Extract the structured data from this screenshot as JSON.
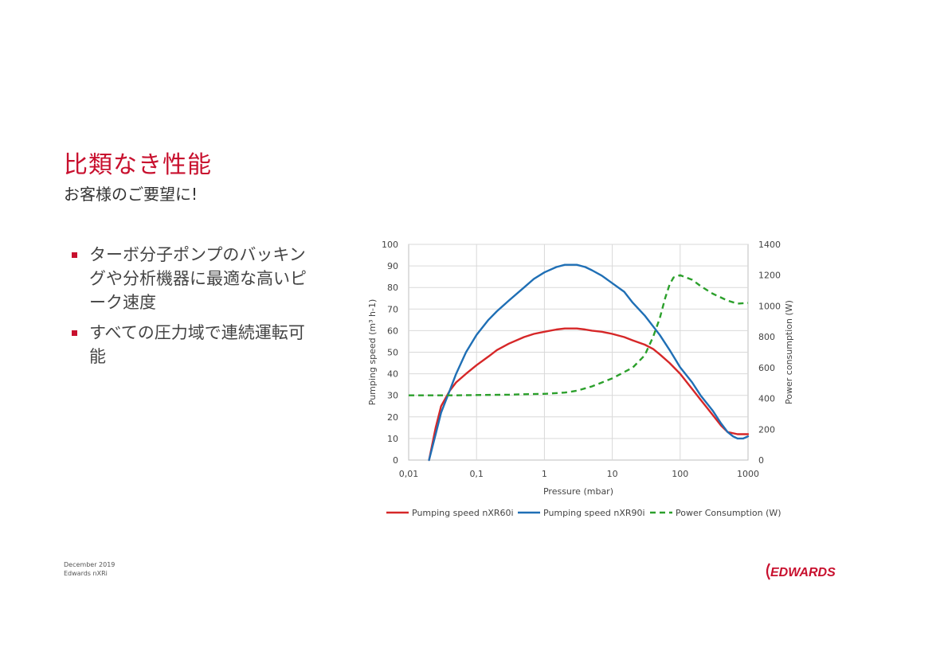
{
  "slide": {
    "title": "比類なき性能",
    "subtitle": "お客様のご要望に!",
    "bullets": [
      "ターボ分子ポンプのバッキングや分析機器に最適な高いピーク速度",
      "すべての圧力域で連続運転可能"
    ]
  },
  "footer": {
    "date": "December 2019",
    "product": "Edwards nXRi"
  },
  "logo": {
    "text": "EDWARDS",
    "color": "#c8102e"
  },
  "chart_data": {
    "type": "line",
    "title": "",
    "xlabel": "Pressure (mbar)",
    "ylabel": "Pumping speed (m³ h-1)",
    "y2label": "Power consumption (W)",
    "xscale": "log",
    "xlim": [
      0.01,
      1000
    ],
    "ylim": [
      0,
      100
    ],
    "y2lim": [
      0,
      1400
    ],
    "grid": true,
    "legend_position": "bottom",
    "xticks": [
      {
        "v": 0.01,
        "label": "0,01"
      },
      {
        "v": 0.1,
        "label": "0,1"
      },
      {
        "v": 1,
        "label": "1"
      },
      {
        "v": 10,
        "label": "10"
      },
      {
        "v": 100,
        "label": "100"
      },
      {
        "v": 1000,
        "label": "1000"
      }
    ],
    "yticks": [
      {
        "v": 0,
        "label": "0"
      },
      {
        "v": 10,
        "label": "10"
      },
      {
        "v": 20,
        "label": "20"
      },
      {
        "v": 30,
        "label": "30"
      },
      {
        "v": 40,
        "label": "40"
      },
      {
        "v": 50,
        "label": "50"
      },
      {
        "v": 60,
        "label": "60"
      },
      {
        "v": 70,
        "label": "70"
      },
      {
        "v": 80,
        "label": "80"
      },
      {
        "v": 90,
        "label": "90"
      },
      {
        "v": 100,
        "label": "100"
      }
    ],
    "y2ticks": [
      {
        "v": 0,
        "label": "0"
      },
      {
        "v": 200,
        "label": "200"
      },
      {
        "v": 400,
        "label": "400"
      },
      {
        "v": 600,
        "label": "600"
      },
      {
        "v": 800,
        "label": "800"
      },
      {
        "v": 1000,
        "label": "1000"
      },
      {
        "v": 1200,
        "label": "1200"
      },
      {
        "v": 1400,
        "label": "1400"
      }
    ],
    "series": [
      {
        "name": "Pumping speed nXR60i",
        "color": "#d62728",
        "axis": "left",
        "dash": "solid",
        "points": [
          [
            0.02,
            0
          ],
          [
            0.025,
            15
          ],
          [
            0.03,
            25
          ],
          [
            0.04,
            32
          ],
          [
            0.05,
            36
          ],
          [
            0.07,
            40
          ],
          [
            0.1,
            44
          ],
          [
            0.15,
            48
          ],
          [
            0.2,
            51
          ],
          [
            0.3,
            54
          ],
          [
            0.5,
            57
          ],
          [
            0.7,
            58.5
          ],
          [
            1,
            59.5
          ],
          [
            1.5,
            60.5
          ],
          [
            2,
            61
          ],
          [
            3,
            61
          ],
          [
            4,
            60.5
          ],
          [
            5,
            60
          ],
          [
            7,
            59.5
          ],
          [
            10,
            58.5
          ],
          [
            15,
            57
          ],
          [
            20,
            55.5
          ],
          [
            30,
            53.5
          ],
          [
            40,
            51.5
          ],
          [
            50,
            49
          ],
          [
            70,
            45
          ],
          [
            100,
            40
          ],
          [
            150,
            33
          ],
          [
            200,
            28
          ],
          [
            300,
            21
          ],
          [
            400,
            16
          ],
          [
            500,
            13
          ],
          [
            700,
            12
          ],
          [
            1000,
            12
          ]
        ]
      },
      {
        "name": "Pumping speed nXR90i",
        "color": "#1f6fb5",
        "axis": "left",
        "dash": "solid",
        "points": [
          [
            0.02,
            0
          ],
          [
            0.025,
            12
          ],
          [
            0.03,
            22
          ],
          [
            0.04,
            32
          ],
          [
            0.05,
            40
          ],
          [
            0.07,
            50
          ],
          [
            0.1,
            58
          ],
          [
            0.15,
            65
          ],
          [
            0.2,
            69
          ],
          [
            0.3,
            74
          ],
          [
            0.5,
            80
          ],
          [
            0.7,
            84
          ],
          [
            1,
            87
          ],
          [
            1.5,
            89.5
          ],
          [
            2,
            90.5
          ],
          [
            3,
            90.5
          ],
          [
            4,
            89.5
          ],
          [
            5,
            88
          ],
          [
            7,
            85.5
          ],
          [
            10,
            82
          ],
          [
            15,
            78
          ],
          [
            20,
            73
          ],
          [
            30,
            67
          ],
          [
            50,
            58
          ],
          [
            70,
            51
          ],
          [
            100,
            43
          ],
          [
            150,
            36
          ],
          [
            200,
            30
          ],
          [
            300,
            23
          ],
          [
            400,
            17
          ],
          [
            500,
            13
          ],
          [
            600,
            11
          ],
          [
            700,
            10
          ],
          [
            850,
            10
          ],
          [
            1000,
            11
          ]
        ]
      },
      {
        "name": "Power Consumption (W)",
        "color": "#2ca02c",
        "axis": "right",
        "dash": "dashed",
        "points": [
          [
            0.01,
            420
          ],
          [
            0.05,
            420
          ],
          [
            0.1,
            422
          ],
          [
            0.3,
            424
          ],
          [
            0.5,
            427
          ],
          [
            1,
            430
          ],
          [
            2,
            438
          ],
          [
            3,
            450
          ],
          [
            5,
            478
          ],
          [
            10,
            530
          ],
          [
            20,
            600
          ],
          [
            30,
            680
          ],
          [
            40,
            800
          ],
          [
            50,
            920
          ],
          [
            60,
            1050
          ],
          [
            70,
            1140
          ],
          [
            80,
            1185
          ],
          [
            100,
            1200
          ],
          [
            150,
            1170
          ],
          [
            200,
            1130
          ],
          [
            300,
            1080
          ],
          [
            500,
            1035
          ],
          [
            700,
            1015
          ],
          [
            1000,
            1020
          ]
        ]
      }
    ]
  }
}
